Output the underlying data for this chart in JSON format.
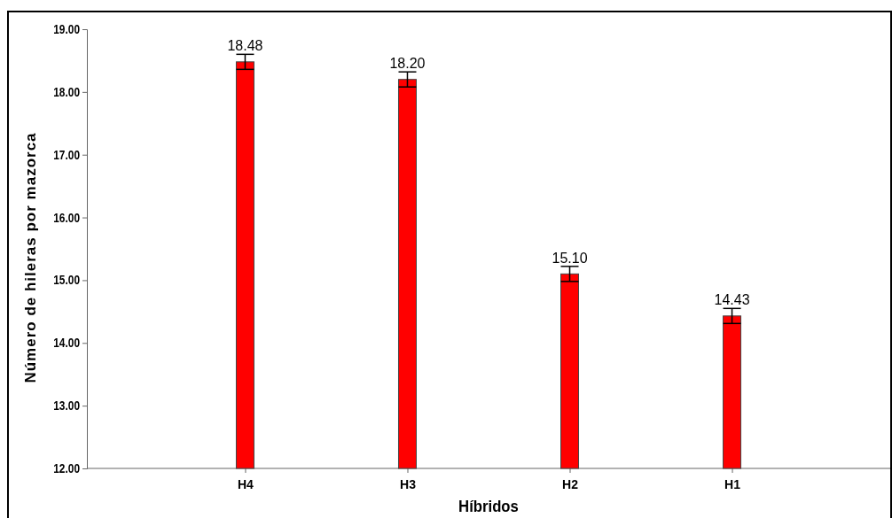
{
  "chart_data": {
    "type": "bar",
    "xlabel": "Híbridos",
    "ylabel": "Número de hileras por mazorca",
    "categories": [
      "H4",
      "H3",
      "H2",
      "H1"
    ],
    "values": [
      18.48,
      18.2,
      15.1,
      14.43
    ],
    "errors": [
      0.12,
      0.12,
      0.12,
      0.12
    ],
    "value_labels": [
      "18.48",
      "18.20",
      "15.10",
      "14.43"
    ],
    "color": "#ff0000",
    "ylim": [
      12,
      19
    ],
    "yticks": [
      {
        "value": 12,
        "label": "12.00"
      },
      {
        "value": 13,
        "label": "13.00"
      },
      {
        "value": 14,
        "label": "14.00"
      },
      {
        "value": 15,
        "label": "15.00"
      },
      {
        "value": 16,
        "label": "16.00"
      },
      {
        "value": 17,
        "label": "17.00"
      },
      {
        "value": 18,
        "label": "18.00"
      },
      {
        "value": 19,
        "label": "19.00"
      }
    ],
    "grid": false,
    "legend": false
  }
}
